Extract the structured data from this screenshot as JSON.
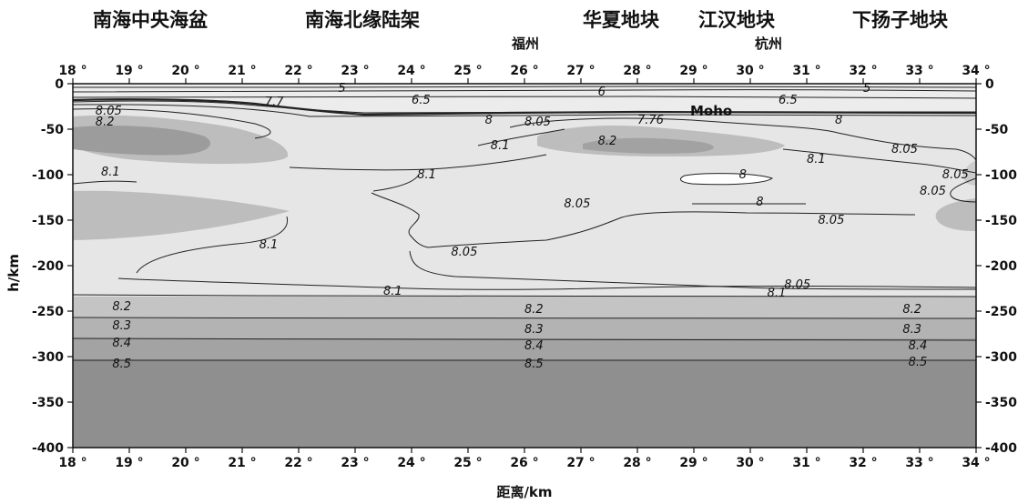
{
  "regions": [
    {
      "id": "scs-basin",
      "label": "南海中央海盆"
    },
    {
      "id": "scs-margin",
      "label": "南海北缘陆架"
    },
    {
      "id": "cathaysia",
      "label": "华夏地块"
    },
    {
      "id": "jianghan",
      "label": "江汉地块"
    },
    {
      "id": "yangtze",
      "label": "下扬子地块"
    }
  ],
  "cities": [
    {
      "id": "fuzhou",
      "label": "福州"
    },
    {
      "id": "hangzhou",
      "label": "杭州"
    }
  ],
  "x_ticks": [
    "18 °",
    "19 °",
    "20 °",
    "21 °",
    "22 °",
    "23 °",
    "24 °",
    "25 °",
    "26 °",
    "27 °",
    "28 °",
    "29 °",
    "30 °",
    "31 °",
    "32 °",
    "33 °",
    "34 °"
  ],
  "x_tick_values": [
    18,
    19,
    20,
    21,
    22,
    23,
    24,
    25,
    26,
    27,
    28,
    29,
    30,
    31,
    32,
    33,
    34
  ],
  "y_ticks": [
    "0",
    "-50",
    "-100",
    "-150",
    "-200",
    "-250",
    "-300",
    "-350",
    "-400"
  ],
  "y_tick_values": [
    0,
    -50,
    -100,
    -150,
    -200,
    -250,
    -300,
    -350,
    -400
  ],
  "axis_labels": {
    "x": "距离/km",
    "y": "h/km"
  },
  "moho_label": "Moho",
  "contour_labels": [
    {
      "text": "5",
      "x": 22.7,
      "y": -5
    },
    {
      "text": "6",
      "x": 27.3,
      "y": -9
    },
    {
      "text": "5",
      "x": 32.0,
      "y": -5
    },
    {
      "text": "6.5",
      "x": 24.0,
      "y": -18
    },
    {
      "text": "6.5",
      "x": 30.5,
      "y": -18
    },
    {
      "text": "7.7",
      "x": 21.4,
      "y": -20
    },
    {
      "text": "8.05",
      "x": 18.4,
      "y": -30
    },
    {
      "text": "8.2",
      "x": 18.4,
      "y": -42
    },
    {
      "text": "8",
      "x": 25.3,
      "y": -40
    },
    {
      "text": "8.05",
      "x": 26.0,
      "y": -42
    },
    {
      "text": "7.76",
      "x": 28.0,
      "y": -40
    },
    {
      "text": "8",
      "x": 31.5,
      "y": -40
    },
    {
      "text": "8.2",
      "x": 27.3,
      "y": -63
    },
    {
      "text": "8.1",
      "x": 25.4,
      "y": -68
    },
    {
      "text": "8.05",
      "x": 32.5,
      "y": -72
    },
    {
      "text": "8.1",
      "x": 31.0,
      "y": -83
    },
    {
      "text": "8.1",
      "x": 18.5,
      "y": -97
    },
    {
      "text": "8.1",
      "x": 24.1,
      "y": -100
    },
    {
      "text": "8",
      "x": 29.8,
      "y": -100
    },
    {
      "text": "8.05",
      "x": 33.4,
      "y": -100
    },
    {
      "text": "8.05",
      "x": 33.0,
      "y": -118
    },
    {
      "text": "8.05",
      "x": 26.7,
      "y": -132
    },
    {
      "text": "8",
      "x": 30.1,
      "y": -130
    },
    {
      "text": "8.05",
      "x": 31.2,
      "y": -150
    },
    {
      "text": "8.1",
      "x": 21.3,
      "y": -177
    },
    {
      "text": "8.05",
      "x": 24.7,
      "y": -185
    },
    {
      "text": "8.05",
      "x": 30.6,
      "y": -221
    },
    {
      "text": "8.1",
      "x": 23.5,
      "y": -228
    },
    {
      "text": "8.1",
      "x": 30.3,
      "y": -230
    },
    {
      "text": "8.2",
      "x": 18.7,
      "y": -245
    },
    {
      "text": "8.2",
      "x": 26.0,
      "y": -248
    },
    {
      "text": "8.2",
      "x": 32.7,
      "y": -248
    },
    {
      "text": "8.3",
      "x": 18.7,
      "y": -266
    },
    {
      "text": "8.3",
      "x": 26.0,
      "y": -270
    },
    {
      "text": "8.3",
      "x": 32.7,
      "y": -270
    },
    {
      "text": "8.4",
      "x": 18.7,
      "y": -285
    },
    {
      "text": "8.4",
      "x": 26.0,
      "y": -288
    },
    {
      "text": "8.4",
      "x": 32.8,
      "y": -288
    },
    {
      "text": "8.5",
      "x": 18.7,
      "y": -308
    },
    {
      "text": "8.5",
      "x": 26.0,
      "y": -308
    },
    {
      "text": "8.5",
      "x": 32.8,
      "y": -306
    }
  ]
}
